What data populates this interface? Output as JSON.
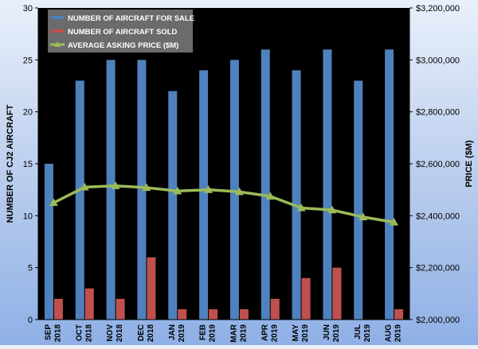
{
  "chart_data": {
    "type": "bar",
    "categories": [
      [
        "SEP",
        "2018"
      ],
      [
        "OCT",
        "2018"
      ],
      [
        "NOV",
        "2018"
      ],
      [
        "DEC",
        "2018"
      ],
      [
        "JAN",
        "2019"
      ],
      [
        "FEB",
        "2019"
      ],
      [
        "MAR",
        "2019"
      ],
      [
        "APR",
        "2019"
      ],
      [
        "MAY",
        "2019"
      ],
      [
        "JUN",
        "2019"
      ],
      [
        "JUL",
        "2019"
      ],
      [
        "AUG",
        "2019"
      ]
    ],
    "series": [
      {
        "name": "NUMBER OF AIRCRAFT FOR SALE",
        "kind": "bar",
        "axis": "left",
        "color": "#4f81bd",
        "values": [
          15,
          23,
          25,
          25,
          22,
          24,
          25,
          26,
          24,
          26,
          23,
          26
        ]
      },
      {
        "name": "NUMBER OF AIRCRAFT SOLD",
        "kind": "bar",
        "axis": "left",
        "color": "#c0504d",
        "values": [
          2,
          3,
          2,
          6,
          1,
          1,
          1,
          2,
          4,
          5,
          0,
          1
        ]
      },
      {
        "name": "AVERAGE ASKING PRICE ($M)",
        "kind": "line",
        "axis": "right",
        "color": "#9bbb59",
        "values": [
          2450000,
          2510000,
          2515000,
          2508000,
          2495000,
          2500000,
          2492000,
          2475000,
          2430000,
          2422000,
          2395000,
          2375000
        ]
      }
    ],
    "ylabel": "NUMBER OF CJ2 AIRCRAFT",
    "y2label": "PRICE ($M)",
    "ylim": [
      0,
      30
    ],
    "yticks": [
      "0",
      "5",
      "10",
      "15",
      "20",
      "25",
      "30"
    ],
    "y2lim": [
      2000000,
      3200000
    ],
    "y2ticks": [
      "$2,000,000",
      "$2,200,000",
      "$2,400,000",
      "$2,600,000",
      "$2,800,000",
      "$3,000,000",
      "$3,200,000"
    ],
    "legend": "top-left",
    "grid": false,
    "plot_background": "#000000"
  }
}
